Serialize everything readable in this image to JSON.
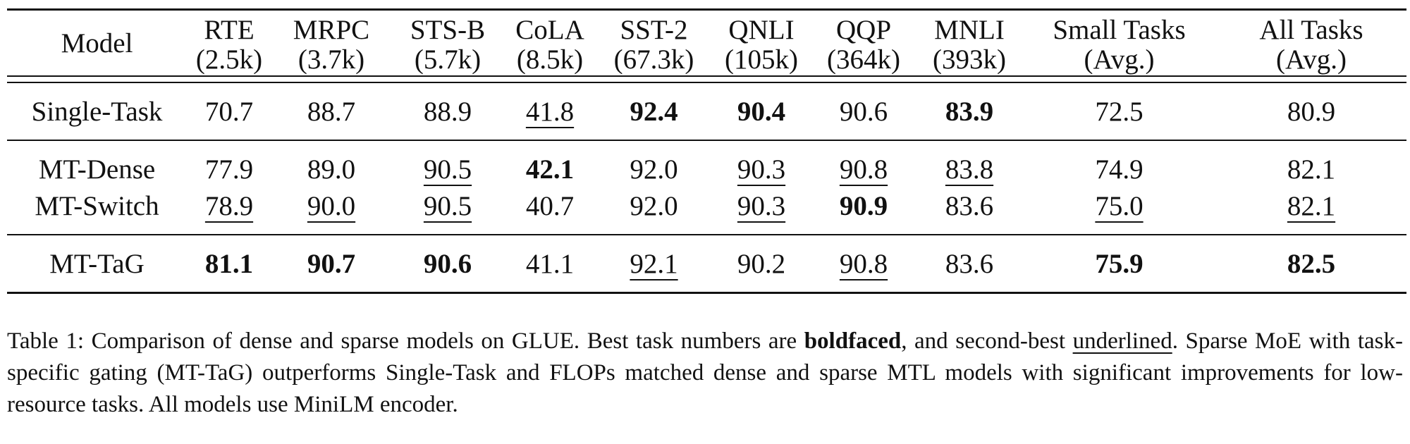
{
  "table": {
    "model_header": "Model",
    "columns": [
      {
        "name": "RTE",
        "sub": "(2.5k)"
      },
      {
        "name": "MRPC",
        "sub": "(3.7k)"
      },
      {
        "name": "STS-B",
        "sub": "(5.7k)"
      },
      {
        "name": "CoLA",
        "sub": "(8.5k)"
      },
      {
        "name": "SST-2",
        "sub": "(67.3k)"
      },
      {
        "name": "QNLI",
        "sub": "(105k)"
      },
      {
        "name": "QQP",
        "sub": "(364k)"
      },
      {
        "name": "MNLI",
        "sub": "(393k)"
      },
      {
        "name": "Small Tasks",
        "sub": "(Avg.)"
      },
      {
        "name": "All Tasks",
        "sub": "(Avg.)"
      }
    ],
    "rows": [
      {
        "model": "Single-Task",
        "model_bold": false,
        "cells": [
          {
            "v": "70.7",
            "s": ""
          },
          {
            "v": "88.7",
            "s": ""
          },
          {
            "v": "88.9",
            "s": ""
          },
          {
            "v": "41.8",
            "s": "u"
          },
          {
            "v": "92.4",
            "s": "b"
          },
          {
            "v": "90.4",
            "s": "b"
          },
          {
            "v": "90.6",
            "s": ""
          },
          {
            "v": "83.9",
            "s": "b"
          },
          {
            "v": "72.5",
            "s": ""
          },
          {
            "v": "80.9",
            "s": ""
          }
        ]
      },
      {
        "model": "MT-Dense",
        "model_bold": false,
        "cells": [
          {
            "v": "77.9",
            "s": ""
          },
          {
            "v": "89.0",
            "s": ""
          },
          {
            "v": "90.5",
            "s": "u"
          },
          {
            "v": "42.1",
            "s": "b"
          },
          {
            "v": "92.0",
            "s": ""
          },
          {
            "v": "90.3",
            "s": "u"
          },
          {
            "v": "90.8",
            "s": "u"
          },
          {
            "v": "83.8",
            "s": "u"
          },
          {
            "v": "74.9",
            "s": ""
          },
          {
            "v": "82.1",
            "s": ""
          }
        ]
      },
      {
        "model": "MT-Switch",
        "model_bold": false,
        "cells": [
          {
            "v": "78.9",
            "s": "u"
          },
          {
            "v": "90.0",
            "s": "u"
          },
          {
            "v": "90.5",
            "s": "u"
          },
          {
            "v": "40.7",
            "s": ""
          },
          {
            "v": "92.0",
            "s": ""
          },
          {
            "v": "90.3",
            "s": "u"
          },
          {
            "v": "90.9",
            "s": "b"
          },
          {
            "v": "83.6",
            "s": ""
          },
          {
            "v": "75.0",
            "s": "u"
          },
          {
            "v": "82.1",
            "s": "u"
          }
        ]
      },
      {
        "model": "MT-TaG",
        "model_bold": true,
        "cells": [
          {
            "v": "81.1",
            "s": "b"
          },
          {
            "v": "90.7",
            "s": "b"
          },
          {
            "v": "90.6",
            "s": "b"
          },
          {
            "v": "41.1",
            "s": ""
          },
          {
            "v": "92.1",
            "s": "u"
          },
          {
            "v": "90.2",
            "s": ""
          },
          {
            "v": "90.8",
            "s": "u"
          },
          {
            "v": "83.6",
            "s": ""
          },
          {
            "v": "75.9",
            "s": "b"
          },
          {
            "v": "82.5",
            "s": "b"
          }
        ]
      }
    ]
  },
  "caption": {
    "p1": "Table 1: Comparison of dense and sparse models on GLUE. Best task numbers are ",
    "bold_word": "boldfaced",
    "p2": ", and second-best ",
    "underline_word": "underlined",
    "p3": ". Sparse MoE with task-specific gating (MT-TaG) outperforms Single-Task and FLOPs matched dense and sparse MTL models with significant improvements for low-resource tasks. All models use MiniLM encoder."
  }
}
